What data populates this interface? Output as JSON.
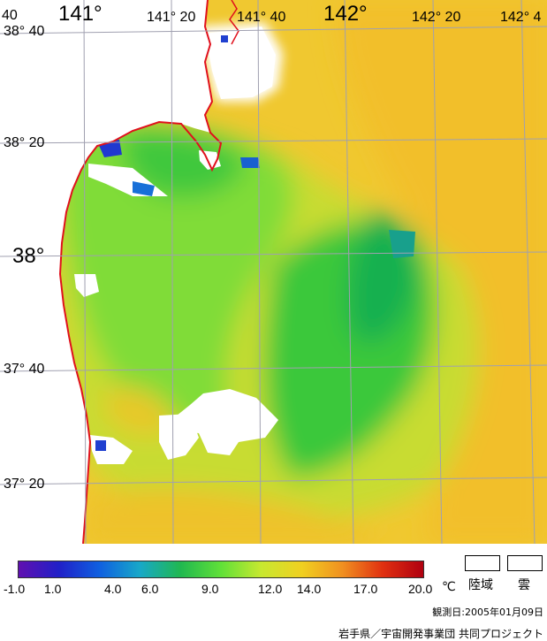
{
  "map": {
    "longitude_labels": [
      "141°",
      "141° 20",
      "141° 40",
      "142°",
      "142° 20",
      "142° 4"
    ],
    "longitude_left_edge_label": "40",
    "latitude_labels": [
      "38° 40",
      "38° 20",
      "38°",
      "37° 40",
      "37° 20"
    ],
    "colors": {
      "sea_warm": "#f2c42a",
      "sea_mid": "#d8d830",
      "sea_cool": "#7ad838",
      "sea_cold": "#28c83a",
      "sea_colder": "#16b44c",
      "cloud": "#ffffff",
      "coastline": "#e0101c",
      "grid": "#a0a0b0"
    }
  },
  "colorbar": {
    "ticks": [
      "-1.0",
      "1.0",
      "4.0",
      "6.0",
      "9.0",
      "12.0",
      "14.0",
      "17.0",
      "20.0"
    ],
    "unit": "℃",
    "gradient_colors": [
      "#6010b0",
      "#2020c8",
      "#1060e0",
      "#18a8c8",
      "#20b850",
      "#60e038",
      "#c8e830",
      "#f0d020",
      "#f09020",
      "#e03010",
      "#b00010"
    ]
  },
  "legend": {
    "land_label": "陸域",
    "cloud_label": "雲"
  },
  "footer": {
    "observation_date": "観測日:2005年01月09日",
    "credit": "岩手県／宇宙開発事業団 共同プロジェクト"
  }
}
